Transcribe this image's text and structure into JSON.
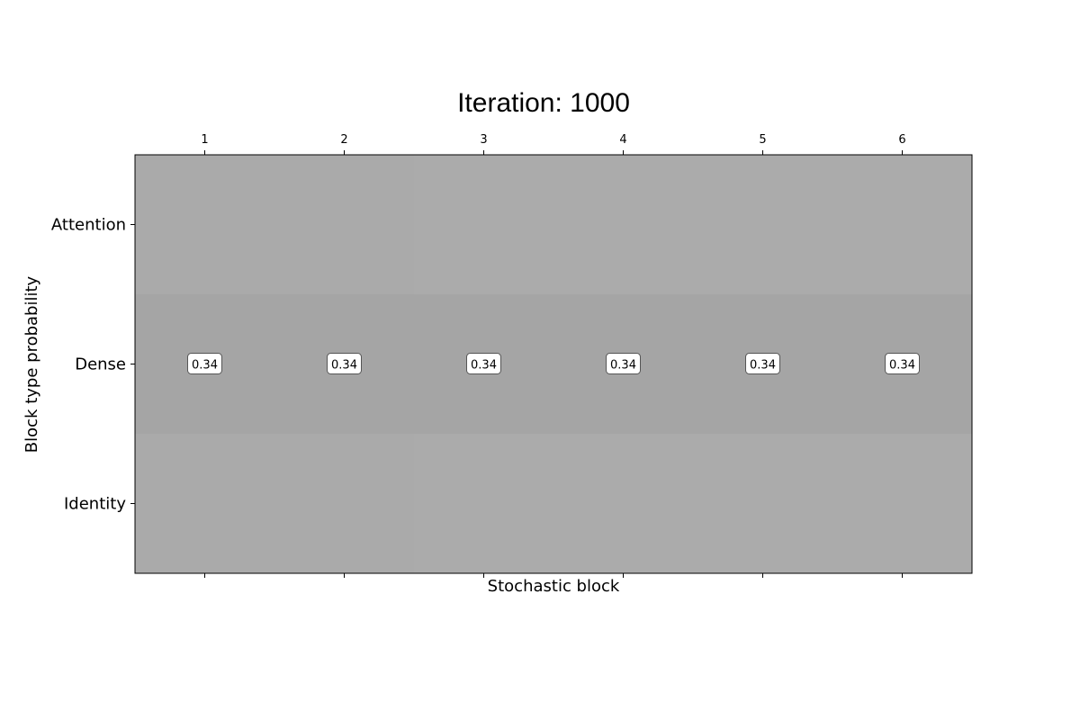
{
  "chart_data": {
    "type": "heatmap",
    "title": "Iteration: 1000",
    "xlabel": "Stochastic block",
    "ylabel": "Block type probability",
    "x_categories": [
      "1",
      "2",
      "3",
      "4",
      "5",
      "6"
    ],
    "y_categories": [
      "Attention",
      "Dense",
      "Identity"
    ],
    "values": [
      [
        0.33,
        0.33,
        0.33,
        0.33,
        0.33,
        0.33
      ],
      [
        0.34,
        0.34,
        0.34,
        0.34,
        0.34,
        0.34
      ],
      [
        0.33,
        0.33,
        0.33,
        0.33,
        0.33,
        0.33
      ]
    ],
    "annotated_row": "Dense",
    "annotation_labels": [
      "0.34",
      "0.34",
      "0.34",
      "0.34",
      "0.34",
      "0.34"
    ],
    "colors": {
      "cell_dense": "#a5a5a5",
      "cell_other": "#ababab",
      "cell_other_alt": "#aaaaaa",
      "label_box": "#ffffff",
      "label_border": "#555555"
    },
    "x_ticks_position": "top",
    "grid": false
  }
}
